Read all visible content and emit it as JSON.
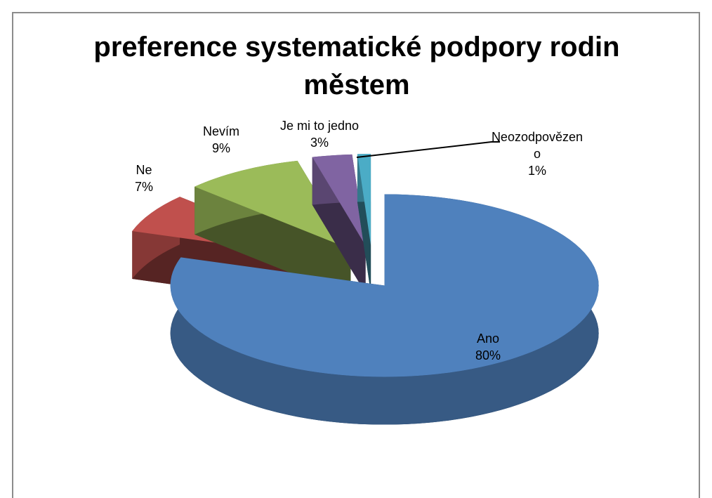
{
  "chart_data": {
    "type": "pie3d",
    "title": "preference systematické podpory rodin městem",
    "categories": [
      "Ano",
      "Ne",
      "Nevím",
      "Je mi to jedno",
      "Neozodpovězeno"
    ],
    "values": [
      80,
      7,
      9,
      3,
      1
    ],
    "value_labels": [
      "80%",
      "7%",
      "9%",
      "3%",
      "1%"
    ],
    "colors": [
      "#4f81bd",
      "#c0504d",
      "#9bbb59",
      "#8064a2",
      "#4bacc6"
    ]
  }
}
